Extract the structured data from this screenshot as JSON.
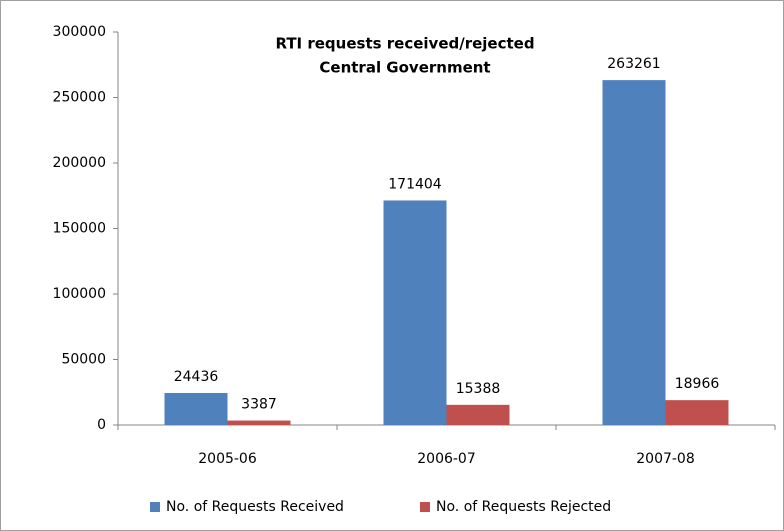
{
  "chart_data": {
    "type": "bar",
    "title": "RTI requests received/rejected",
    "subtitle": "Central Government",
    "categories": [
      "2005-06",
      "2006-07",
      "2007-08"
    ],
    "series": [
      {
        "name": "No. of Requests Received",
        "color": "#4f81bd",
        "values": [
          24436,
          171404,
          263261
        ]
      },
      {
        "name": "No. of Requests Rejected",
        "color": "#c0504d",
        "values": [
          3387,
          15388,
          18966
        ]
      }
    ],
    "ylim": [
      0,
      300000
    ],
    "yticks": [
      0,
      50000,
      100000,
      150000,
      200000,
      250000,
      300000
    ],
    "grid": false,
    "legend": "bottom"
  }
}
